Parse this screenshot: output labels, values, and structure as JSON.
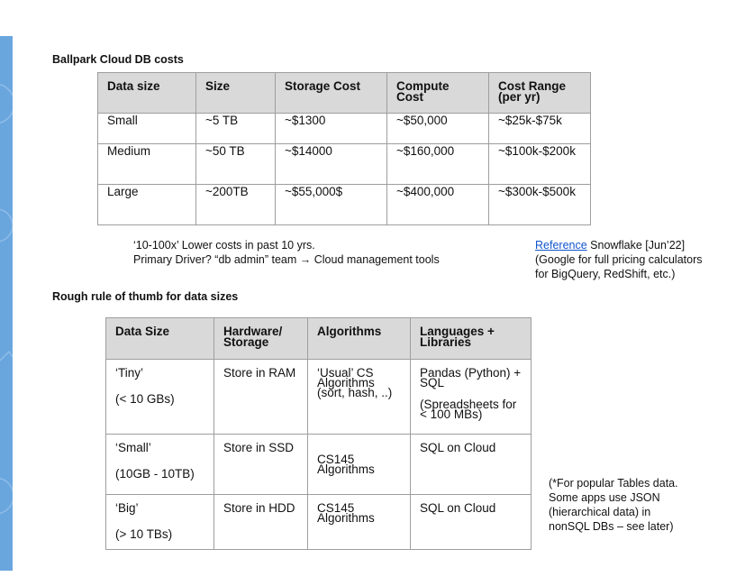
{
  "colors": {
    "sidebar": "#6aa6de",
    "header_fill": "#d9d9d9",
    "link": "#1155cc"
  },
  "cost_section": {
    "title": "Ballpark Cloud DB costs",
    "headers": [
      "Data size",
      "Size",
      "Storage Cost",
      "Compute Cost",
      "Cost Range (per yr)"
    ],
    "rows": [
      {
        "data_size": "Small",
        "size": "~5 TB",
        "storage": "~$1300",
        "compute": "~$50,000",
        "range": "~$25k-$75k"
      },
      {
        "data_size": "Medium",
        "size": "~50 TB",
        "storage": "~$14000",
        "compute": "~$160,000",
        "range": "~$100k-$200k"
      },
      {
        "data_size": "Large",
        "size": "~200TB",
        "storage": "~$55,000$",
        "compute": "~$400,000",
        "range": "~$300k-$500k"
      }
    ],
    "note_line1": "‘10-100x’ Lower costs in past 10 yrs.",
    "note_line2": "Primary Driver? “db admin” team → Cloud management tools",
    "reference": {
      "link_text": "Reference",
      "after_link": " Snowflake [Jun’22]",
      "line2": "(Google for full pricing calculators",
      "line3": "for BigQuery, RedShift, etc.)"
    }
  },
  "size_section": {
    "title": "Rough rule of thumb for data sizes",
    "headers": [
      "Data Size",
      "Hardware/ Storage",
      "Algorithms",
      "Languages + Libraries"
    ],
    "rows": [
      {
        "name": "‘Tiny’",
        "range": "(< 10 GBs)",
        "hardware": "Store in RAM",
        "algorithms": "‘Usual’ CS Algorithms (sort, hash, ..)",
        "languages": "Pandas (Python) + SQL",
        "languages_extra": "(Spreadsheets for < 100 MBs)"
      },
      {
        "name": "‘Small’",
        "range": "(10GB - 10TB)",
        "hardware": "Store in SSD",
        "algorithms": "CS145 Algorithms",
        "languages": "SQL on Cloud"
      },
      {
        "name": "‘Big’",
        "range": "(> 10 TBs)",
        "hardware": "Store in HDD",
        "algorithms": "CS145 Algorithms",
        "languages": "SQL on Cloud"
      }
    ],
    "side_note": {
      "line1": "(*For popular Tables data.",
      "line2": "Some apps use JSON",
      "line3": "(hierarchical data) in",
      "line4": "nonSQL DBs – see later)"
    }
  }
}
